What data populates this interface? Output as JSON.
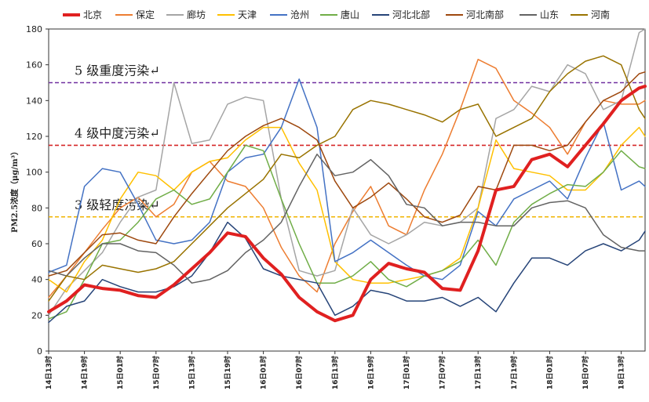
{
  "chart_data": {
    "type": "line",
    "title": "",
    "ylabel": "PM2.5浓度（μg/m³）",
    "ylim": [
      0,
      180
    ],
    "yticks": [
      0,
      20,
      40,
      60,
      80,
      100,
      120,
      140,
      160,
      180
    ],
    "xlabels": [
      "14日13时",
      "14日19时",
      "15日01时",
      "15日07时",
      "15日13时",
      "15日19时",
      "16日01时",
      "16日07时",
      "16日13时",
      "16日19时",
      "17日01时",
      "17日07时",
      "17日13时",
      "17日19时",
      "18日01时",
      "18日07时",
      "18日13时"
    ],
    "x_hours": [
      0,
      6,
      12,
      18,
      24,
      30,
      36,
      42,
      48,
      54,
      60,
      66,
      72,
      78,
      84,
      90,
      96
    ],
    "x_max_hour": 100,
    "thresholds": [
      {
        "label": "5 级重度污染↵",
        "value": 150,
        "color": "#7030a0"
      },
      {
        "label": "4 级中度污染↵",
        "value": 115,
        "color": "#d62728"
      },
      {
        "label": "3 级轻度污染↵",
        "value": 75,
        "color": "#f0b400"
      }
    ],
    "series": [
      {
        "name": "北京",
        "color": "#e02020",
        "width": 4,
        "hours": [
          0,
          3,
          6,
          9,
          12,
          15,
          18,
          21,
          24,
          27,
          30,
          33,
          36,
          39,
          42,
          45,
          48,
          51,
          54,
          57,
          60,
          63,
          66,
          69,
          72,
          75,
          78,
          81,
          84,
          87,
          90,
          93,
          96,
          99,
          100
        ],
        "values": [
          22,
          28,
          37,
          35,
          34,
          31,
          30,
          37,
          46,
          55,
          66,
          64,
          52,
          43,
          30,
          22,
          17,
          20,
          40,
          49,
          46,
          44,
          35,
          34,
          56,
          90,
          92,
          107,
          110,
          103,
          115,
          127,
          140,
          147,
          148
        ]
      },
      {
        "name": "保定",
        "color": "#ed7d31",
        "width": 1.5,
        "hours": [
          0,
          3,
          6,
          9,
          12,
          15,
          18,
          21,
          24,
          27,
          30,
          33,
          36,
          39,
          42,
          45,
          48,
          51,
          54,
          57,
          60,
          63,
          66,
          69,
          72,
          75,
          78,
          81,
          84,
          87,
          90,
          93,
          96,
          99,
          100
        ],
        "values": [
          30,
          42,
          55,
          68,
          80,
          86,
          75,
          82,
          100,
          106,
          95,
          92,
          80,
          58,
          42,
          33,
          60,
          78,
          92,
          70,
          65,
          90,
          110,
          135,
          163,
          158,
          140,
          133,
          125,
          110,
          128,
          140,
          138,
          138,
          140
        ]
      },
      {
        "name": "廊坊",
        "color": "#a5a5a5",
        "width": 1.5,
        "hours": [
          0,
          3,
          6,
          9,
          12,
          15,
          18,
          21,
          24,
          27,
          30,
          33,
          36,
          39,
          42,
          45,
          48,
          51,
          54,
          57,
          60,
          63,
          66,
          69,
          72,
          75,
          78,
          81,
          84,
          87,
          90,
          93,
          96,
          99,
          100
        ],
        "values": [
          20,
          35,
          45,
          55,
          72,
          86,
          90,
          150,
          116,
          118,
          138,
          142,
          140,
          85,
          45,
          42,
          45,
          80,
          65,
          60,
          65,
          72,
          70,
          72,
          80,
          130,
          135,
          148,
          145,
          160,
          155,
          135,
          140,
          178,
          180
        ]
      },
      {
        "name": "天津",
        "color": "#ffc000",
        "width": 1.5,
        "hours": [
          0,
          3,
          6,
          9,
          12,
          15,
          18,
          21,
          24,
          27,
          30,
          33,
          36,
          39,
          42,
          45,
          48,
          51,
          54,
          57,
          60,
          63,
          66,
          69,
          72,
          75,
          78,
          81,
          84,
          87,
          90,
          93,
          96,
          99,
          100
        ],
        "values": [
          40,
          33,
          50,
          62,
          85,
          100,
          98,
          90,
          100,
          106,
          108,
          118,
          125,
          125,
          105,
          90,
          50,
          40,
          38,
          38,
          40,
          42,
          45,
          52,
          80,
          118,
          102,
          100,
          98,
          90,
          90,
          100,
          115,
          125,
          120
        ]
      },
      {
        "name": "沧州",
        "color": "#4472c4",
        "width": 1.5,
        "hours": [
          0,
          3,
          6,
          9,
          12,
          15,
          18,
          21,
          24,
          27,
          30,
          33,
          36,
          39,
          42,
          45,
          48,
          51,
          54,
          57,
          60,
          63,
          66,
          69,
          72,
          75,
          78,
          81,
          84,
          87,
          90,
          93,
          96,
          99,
          100
        ],
        "values": [
          44,
          48,
          92,
          102,
          100,
          82,
          62,
          60,
          62,
          72,
          100,
          108,
          110,
          125,
          152,
          125,
          50,
          55,
          62,
          55,
          48,
          42,
          40,
          48,
          78,
          70,
          85,
          90,
          95,
          85,
          108,
          128,
          90,
          95,
          92
        ]
      },
      {
        "name": "唐山",
        "color": "#70ad47",
        "width": 1.5,
        "hours": [
          0,
          3,
          6,
          9,
          12,
          15,
          18,
          21,
          24,
          27,
          30,
          33,
          36,
          39,
          42,
          45,
          48,
          51,
          54,
          57,
          60,
          63,
          66,
          69,
          72,
          75,
          78,
          81,
          84,
          87,
          90,
          93,
          96,
          99,
          100
        ],
        "values": [
          18,
          22,
          40,
          60,
          62,
          72,
          85,
          90,
          82,
          85,
          100,
          115,
          112,
          85,
          60,
          38,
          38,
          42,
          50,
          40,
          36,
          42,
          45,
          50,
          62,
          48,
          72,
          82,
          88,
          93,
          92,
          100,
          112,
          103,
          102
        ]
      },
      {
        "name": "河北北部",
        "color": "#264478",
        "width": 1.5,
        "hours": [
          0,
          3,
          6,
          9,
          12,
          15,
          18,
          21,
          24,
          27,
          30,
          33,
          36,
          39,
          42,
          45,
          48,
          51,
          54,
          57,
          60,
          63,
          66,
          69,
          72,
          75,
          78,
          81,
          84,
          87,
          90,
          93,
          96,
          99,
          100
        ],
        "values": [
          16,
          25,
          28,
          40,
          36,
          33,
          33,
          36,
          42,
          55,
          72,
          63,
          46,
          42,
          40,
          38,
          20,
          25,
          34,
          32,
          28,
          28,
          30,
          25,
          30,
          22,
          38,
          52,
          52,
          48,
          56,
          60,
          56,
          62,
          67
        ]
      },
      {
        "name": "河北南部",
        "color": "#9e480e",
        "width": 1.5,
        "hours": [
          0,
          3,
          6,
          9,
          12,
          15,
          18,
          21,
          24,
          27,
          30,
          33,
          36,
          39,
          42,
          45,
          48,
          51,
          54,
          57,
          60,
          63,
          66,
          69,
          72,
          75,
          78,
          81,
          84,
          87,
          90,
          93,
          96,
          99,
          100
        ],
        "values": [
          42,
          45,
          55,
          65,
          66,
          62,
          60,
          75,
          88,
          100,
          112,
          120,
          126,
          130,
          125,
          118,
          95,
          80,
          86,
          94,
          85,
          75,
          72,
          76,
          92,
          90,
          115,
          115,
          112,
          115,
          128,
          140,
          145,
          155,
          156
        ]
      },
      {
        "name": "山东",
        "color": "#636363",
        "width": 1.5,
        "hours": [
          0,
          3,
          6,
          9,
          12,
          15,
          18,
          21,
          24,
          27,
          30,
          33,
          36,
          39,
          42,
          45,
          48,
          51,
          54,
          57,
          60,
          63,
          66,
          69,
          72,
          75,
          78,
          81,
          84,
          87,
          90,
          93,
          96,
          99,
          100
        ],
        "values": [
          45,
          42,
          52,
          60,
          60,
          56,
          55,
          48,
          38,
          40,
          45,
          55,
          62,
          72,
          92,
          110,
          98,
          100,
          107,
          98,
          82,
          80,
          70,
          72,
          72,
          70,
          70,
          80,
          83,
          84,
          80,
          65,
          58,
          56,
          56
        ]
      },
      {
        "name": "河南",
        "color": "#997300",
        "width": 1.5,
        "hours": [
          0,
          3,
          6,
          9,
          12,
          15,
          18,
          21,
          24,
          27,
          30,
          33,
          36,
          39,
          42,
          45,
          48,
          51,
          54,
          57,
          60,
          63,
          66,
          69,
          72,
          75,
          78,
          81,
          84,
          87,
          90,
          93,
          96,
          99,
          100
        ],
        "values": [
          28,
          42,
          40,
          48,
          46,
          44,
          46,
          50,
          60,
          70,
          80,
          88,
          96,
          110,
          108,
          115,
          120,
          135,
          140,
          138,
          135,
          132,
          128,
          135,
          138,
          120,
          125,
          130,
          145,
          155,
          162,
          165,
          160,
          135,
          130
        ]
      }
    ]
  }
}
